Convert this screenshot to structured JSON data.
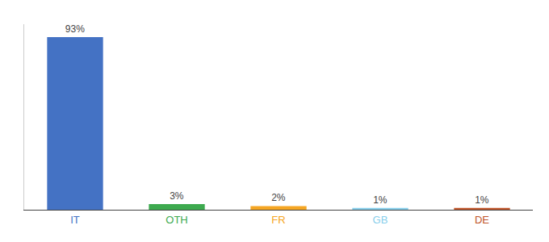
{
  "chart_data": {
    "type": "bar",
    "categories": [
      "IT",
      "OTH",
      "FR",
      "GB",
      "DE"
    ],
    "values": [
      93,
      3,
      2,
      1,
      1
    ],
    "value_labels": [
      "93%",
      "3%",
      "2%",
      "1%",
      "1%"
    ],
    "colors": [
      "#4472c4",
      "#3daa4f",
      "#f5a623",
      "#87ceeb",
      "#c0552a"
    ],
    "ylim": [
      0,
      100
    ],
    "grid": false,
    "data_labels": true,
    "tick_labels": "x"
  }
}
